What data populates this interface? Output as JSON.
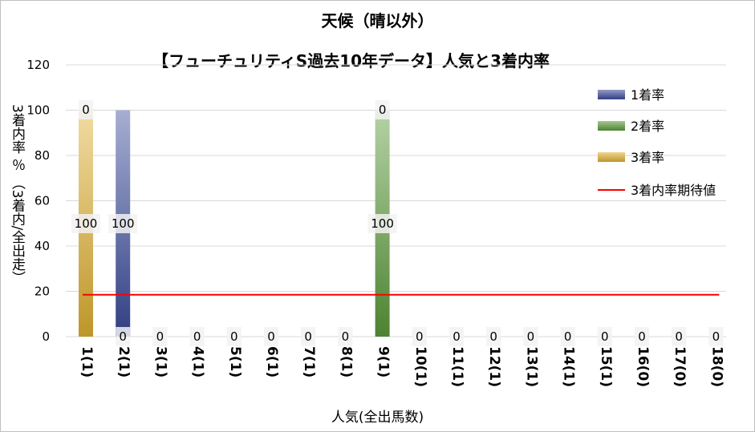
{
  "chart_data": {
    "type": "bar",
    "title_line1": "天候（晴以外）",
    "title_line2": "【フューチュリティS過去10年データ】人気と3着内率",
    "xlabel": "人気(全出馬数)",
    "ylabel": "3着内率 ％ （3着内/全出走）",
    "ylim": [
      0,
      120
    ],
    "yticks": [
      0,
      20,
      40,
      60,
      80,
      100,
      120
    ],
    "grid": true,
    "legend_position": "right",
    "categories": [
      "1(1)",
      "2(1)",
      "3(1)",
      "4(1)",
      "5(1)",
      "6(1)",
      "7(1)",
      "8(1)",
      "9(1)",
      "10(1)",
      "11(1)",
      "12(1)",
      "13(1)",
      "14(1)",
      "15(1)",
      "16(0)",
      "17(0)",
      "18(0)"
    ],
    "series": [
      {
        "name": "1着率",
        "color": "#3a4a9a",
        "values": [
          0,
          100,
          0,
          0,
          0,
          0,
          0,
          0,
          0,
          0,
          0,
          0,
          0,
          0,
          0,
          0,
          0,
          0
        ]
      },
      {
        "name": "2着率",
        "color": "#5a9a3a",
        "values": [
          0,
          0,
          0,
          0,
          0,
          0,
          0,
          0,
          100,
          0,
          0,
          0,
          0,
          0,
          0,
          0,
          0,
          0
        ]
      },
      {
        "name": "3着率",
        "color": "#e0b030",
        "values": [
          100,
          0,
          0,
          0,
          0,
          0,
          0,
          0,
          0,
          0,
          0,
          0,
          0,
          0,
          0,
          0,
          0,
          0
        ]
      }
    ],
    "line": {
      "name": "3着内率期待値",
      "color": "#ff0000",
      "value": 18.5
    },
    "data_labels": [
      {
        "category": "1(1)",
        "top": "0",
        "mid": "100"
      },
      {
        "category": "2(1)",
        "mid": "100",
        "bottom": "0"
      },
      {
        "category": "3(1)",
        "bottom": "0"
      },
      {
        "category": "4(1)",
        "bottom": "0"
      },
      {
        "category": "5(1)",
        "bottom": "0"
      },
      {
        "category": "6(1)",
        "bottom": "0"
      },
      {
        "category": "7(1)",
        "bottom": "0"
      },
      {
        "category": "8(1)",
        "bottom": "0"
      },
      {
        "category": "9(1)",
        "top": "0",
        "mid": "100"
      },
      {
        "category": "10(1)",
        "bottom": "0"
      },
      {
        "category": "11(1)",
        "bottom": "0"
      },
      {
        "category": "12(1)",
        "bottom": "0"
      },
      {
        "category": "13(1)",
        "bottom": "0"
      },
      {
        "category": "14(1)",
        "bottom": "0"
      },
      {
        "category": "15(1)",
        "bottom": "0"
      },
      {
        "category": "16(0)",
        "bottom": "0"
      },
      {
        "category": "17(0)",
        "bottom": "0"
      },
      {
        "category": "18(0)",
        "bottom": "0"
      }
    ]
  }
}
